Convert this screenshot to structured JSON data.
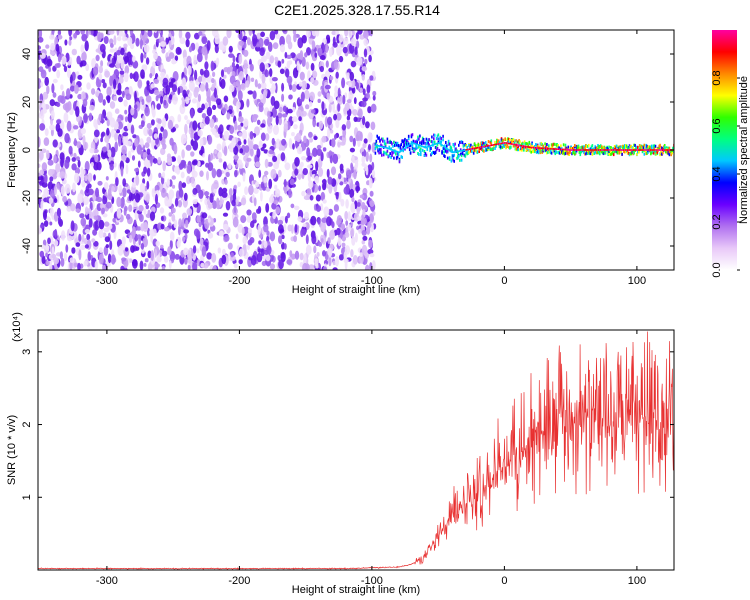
{
  "title": "C2E1.2025.328.17.55.R14",
  "chart_data": [
    {
      "type": "heatmap",
      "xlabel": "Height of straight line (km)",
      "ylabel": "Frequency (Hz)",
      "xlim": [
        -352,
        128
      ],
      "ylim": [
        -50,
        50
      ],
      "xticks": [
        -300,
        -200,
        -100,
        0,
        100
      ],
      "yticks": [
        -40,
        -20,
        0,
        20,
        40
      ],
      "colorbar": {
        "label": "Normalized spectral amplitude",
        "range": [
          0,
          1
        ],
        "ticks": [
          "0.0",
          "0.2",
          "0.4",
          "0.6",
          "0.8"
        ],
        "colors": [
          "#ffffff",
          "#e8c8f8",
          "#b070f0",
          "#6a00ff",
          "#0000ff",
          "#00c8ff",
          "#00ff80",
          "#30ff00",
          "#ffff00",
          "#ff8800",
          "#ff0000",
          "#ff00a0"
        ]
      },
      "noise_region_x": [
        -352,
        -98
      ],
      "signal_track": [
        {
          "x": -98,
          "y": 2
        },
        {
          "x": -90,
          "y": 1
        },
        {
          "x": -80,
          "y": -1
        },
        {
          "x": -70,
          "y": 3
        },
        {
          "x": -60,
          "y": 1
        },
        {
          "x": -50,
          "y": 3
        },
        {
          "x": -40,
          "y": -1
        },
        {
          "x": -30,
          "y": 0
        },
        {
          "x": -20,
          "y": 1
        },
        {
          "x": 0,
          "y": 3
        },
        {
          "x": 20,
          "y": 1
        },
        {
          "x": 50,
          "y": 0
        },
        {
          "x": 80,
          "y": 0
        },
        {
          "x": 128,
          "y": 0
        }
      ]
    },
    {
      "type": "line",
      "xlabel": "Height of straight line (km)",
      "ylabel": "SNR (10 * v/v)",
      "y_multiplier": "(x10⁴)",
      "xlim": [
        -352,
        128
      ],
      "ylim": [
        0,
        3.3
      ],
      "xticks": [
        -300,
        -200,
        -100,
        0,
        100
      ],
      "yticks": [
        1,
        2,
        3
      ],
      "color": "#e83030",
      "series": [
        {
          "x": [
            -352,
            -120,
            -80,
            -70,
            -60,
            -50,
            -40,
            -30,
            -20,
            -10,
            0,
            10,
            20,
            30,
            40,
            50,
            60,
            70,
            80,
            90,
            100,
            110,
            120,
            128
          ],
          "y": [
            0.02,
            0.02,
            0.04,
            0.08,
            0.18,
            0.45,
            0.75,
            0.9,
            1.0,
            1.25,
            1.45,
            1.6,
            1.7,
            1.9,
            2.0,
            2.05,
            2.1,
            2.05,
            2.0,
            2.05,
            2.1,
            2.05,
            2.0,
            2.05
          ]
        }
      ]
    }
  ]
}
